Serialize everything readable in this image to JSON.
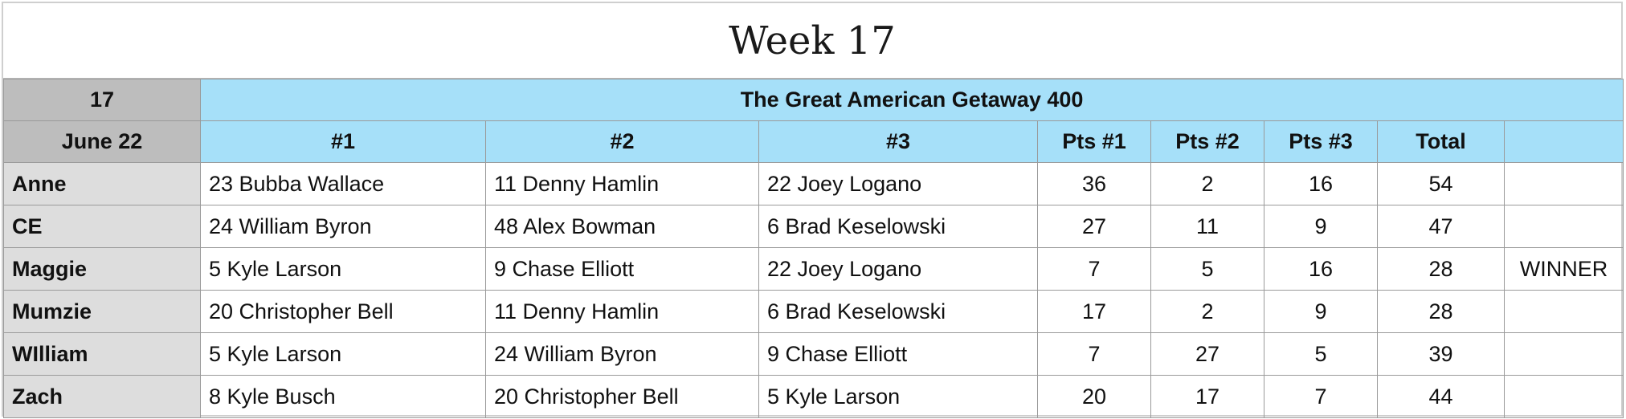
{
  "title": "Week 17",
  "header": {
    "week_number": "17",
    "race_name": "The Great American Getaway 400",
    "date": "June 22",
    "columns": [
      "#1",
      "#2",
      "#3",
      "Pts #1",
      "Pts #2",
      "Pts #3",
      "Total",
      ""
    ]
  },
  "rows": [
    {
      "name": "Anne",
      "pick1": "23 Bubba Wallace",
      "pick2": "11 Denny Hamlin",
      "pick3": "22 Joey Logano",
      "pts1": "36",
      "pts2": "2",
      "pts3": "16",
      "total": "54",
      "note": ""
    },
    {
      "name": "CE",
      "pick1": "24 William Byron",
      "pick2": "48 Alex Bowman",
      "pick3": "6 Brad Keselowski",
      "pts1": "27",
      "pts2": "11",
      "pts3": "9",
      "total": "47",
      "note": ""
    },
    {
      "name": "Maggie",
      "pick1": "5 Kyle Larson",
      "pick2": "9 Chase Elliott",
      "pick3": "22 Joey Logano",
      "pts1": "7",
      "pts2": "5",
      "pts3": "16",
      "total": "28",
      "note": "WINNER"
    },
    {
      "name": "Mumzie",
      "pick1": "20 Christopher Bell",
      "pick2": "11 Denny Hamlin",
      "pick3": "6 Brad Keselowski",
      "pts1": "17",
      "pts2": "2",
      "pts3": "9",
      "total": "28",
      "note": ""
    },
    {
      "name": "WIlliam",
      "pick1": "5 Kyle Larson",
      "pick2": "24 William Byron",
      "pick3": "9 Chase Elliott",
      "pts1": "7",
      "pts2": "27",
      "pts3": "5",
      "total": "39",
      "note": ""
    },
    {
      "name": "Zach",
      "pick1": "8 Kyle Busch",
      "pick2": "20 Christopher Bell",
      "pick3": "5 Kyle Larson",
      "pts1": "20",
      "pts2": "17",
      "pts3": "7",
      "total": "44",
      "note": ""
    }
  ],
  "colors": {
    "header_blue": "#a6e0f9",
    "week_gray": "#bdbdbd",
    "name_gray": "#dddddd"
  }
}
